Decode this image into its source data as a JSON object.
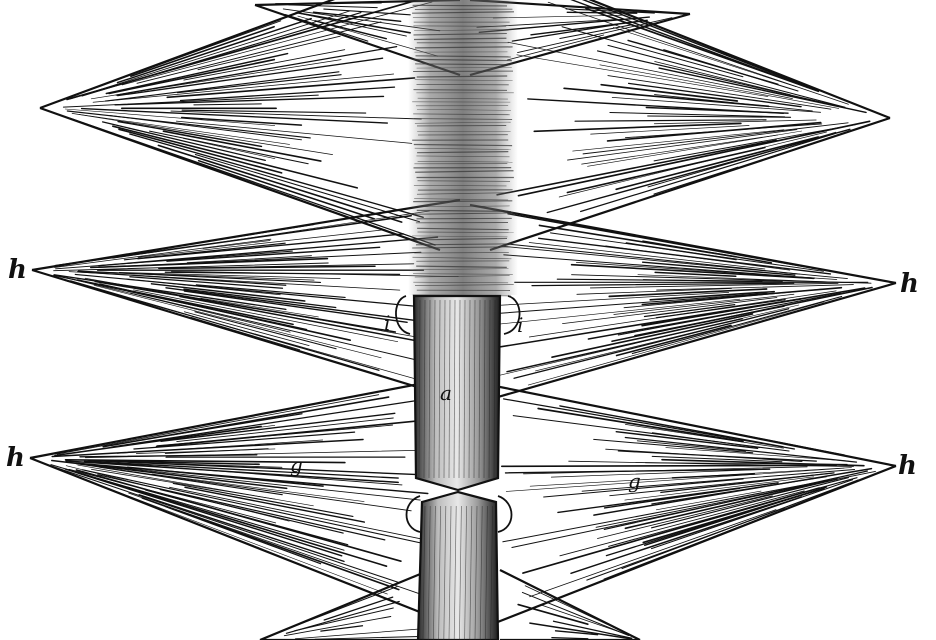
{
  "figure": {
    "labels": {
      "h_upper_left": "h",
      "h_upper_right": "h",
      "h_lower_left": "h",
      "h_lower_right": "h",
      "i_left": "i",
      "i_right": "i",
      "a": "a",
      "g_left": "g",
      "g_right": "g"
    },
    "colors": {
      "ink": "#111111",
      "paper": "#ffffff",
      "shade": "#555555"
    }
  }
}
